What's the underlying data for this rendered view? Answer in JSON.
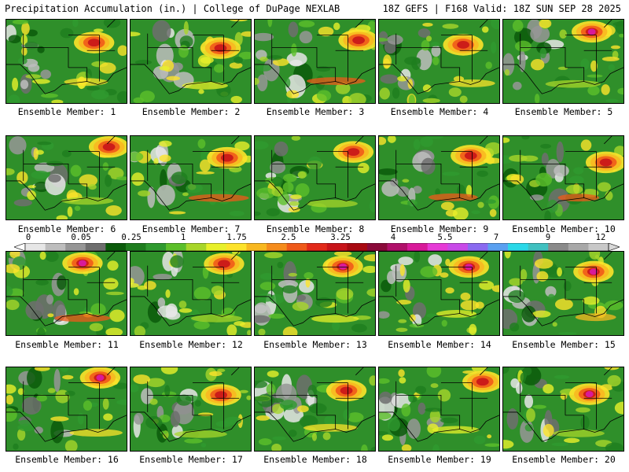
{
  "header": {
    "left_title": "Precipitation Accumulation (in.) | College of DuPage NEXLAB",
    "right_title": "18Z GEFS | F168 Valid: 18Z SUN SEP 28 2025"
  },
  "members": [
    "Ensemble Member: 1",
    "Ensemble Member: 2",
    "Ensemble Member: 3",
    "Ensemble Member: 4",
    "Ensemble Member: 5",
    "Ensemble Member: 6",
    "Ensemble Member: 7",
    "Ensemble Member: 8",
    "Ensemble Member: 9",
    "Ensemble Member: 10",
    "Ensemble Member: 11",
    "Ensemble Member: 12",
    "Ensemble Member: 13",
    "Ensemble Member: 14",
    "Ensemble Member: 15",
    "Ensemble Member: 16",
    "Ensemble Member: 17",
    "Ensemble Member: 18",
    "Ensemble Member: 19",
    "Ensemble Member: 20"
  ],
  "colorbar": {
    "tick_labels": [
      "0",
      "0.05",
      "0.25",
      "1",
      "1.75",
      "2.5",
      "3.25",
      "4",
      "5.5",
      "7",
      "9",
      "12"
    ],
    "colors": [
      "#e6e6e6",
      "#bdbdbd",
      "#969696",
      "#6e6e6e",
      "#0b5b0b",
      "#1e7d1e",
      "#2f9a2f",
      "#5cbf2a",
      "#a8d62a",
      "#e8f02a",
      "#fde32a",
      "#f8b820",
      "#f58c1c",
      "#ef5a1a",
      "#e22a1a",
      "#c8141a",
      "#a80a12",
      "#8a0a3a",
      "#b0106a",
      "#d81a9a",
      "#e63ad6",
      "#c84ae8",
      "#8a6af0",
      "#5aa0f0",
      "#2ad8e8",
      "#40c0c0",
      "#8a8a8a",
      "#a8a8a8",
      "#c8c8c8"
    ]
  }
}
